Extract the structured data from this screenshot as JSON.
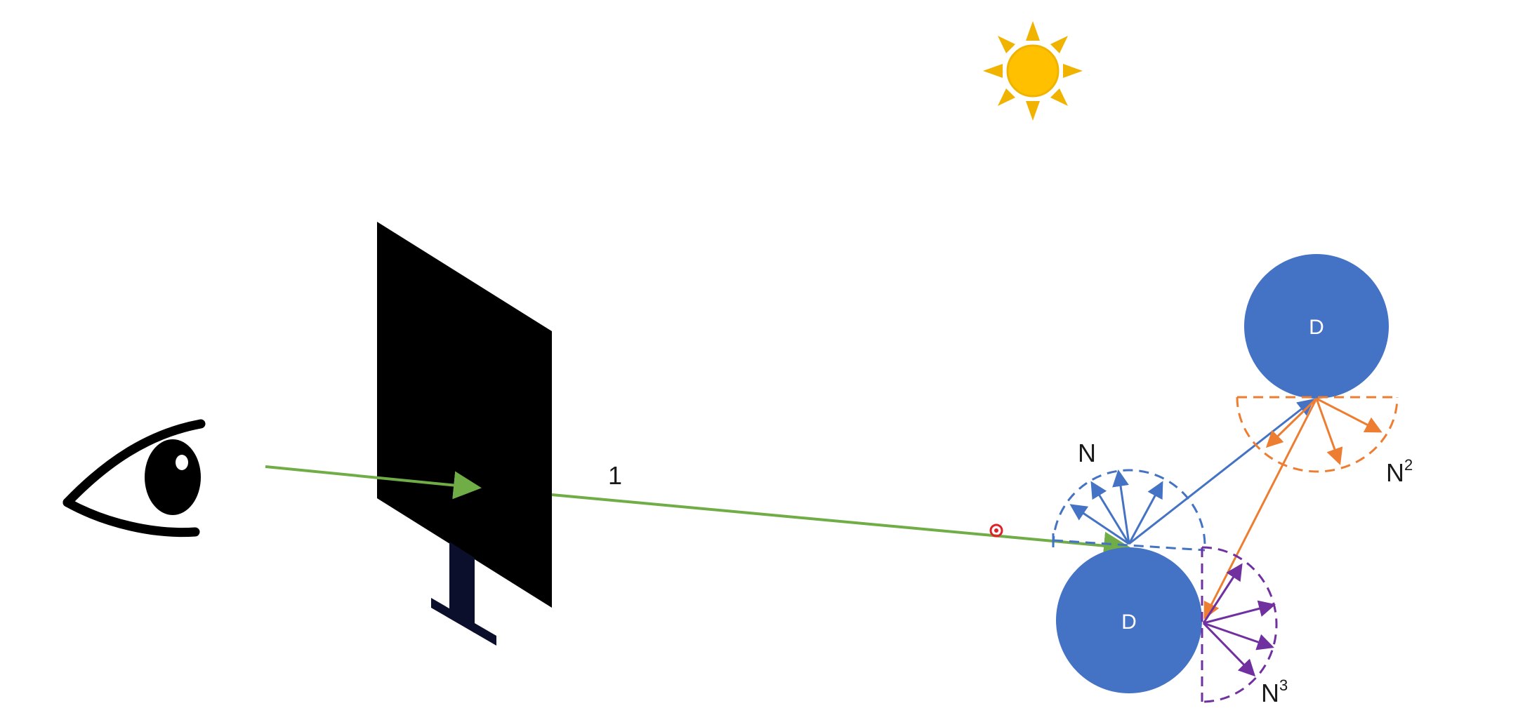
{
  "diagram": {
    "ray_label": "1",
    "hemispheres": [
      {
        "id": "first",
        "label": "N",
        "superscript": "",
        "color": "#4472c4"
      },
      {
        "id": "second",
        "label": "N",
        "superscript": "2",
        "color": "#ed7d31"
      },
      {
        "id": "third",
        "label": "N",
        "superscript": "3",
        "color": "#7030a0"
      }
    ],
    "spheres": [
      {
        "id": "upper",
        "label": "D",
        "color": "#4472c4"
      },
      {
        "id": "lower",
        "label": "D",
        "color": "#4472c4"
      }
    ],
    "colors": {
      "eye_ray": "#70ad47",
      "screen": "#000000",
      "sun": "#ffc000",
      "sun_rays": "#f0b400",
      "cursor": "#e0202a"
    },
    "icons": [
      "eye-icon",
      "sun-icon",
      "screen-icon",
      "cursor-icon"
    ]
  }
}
